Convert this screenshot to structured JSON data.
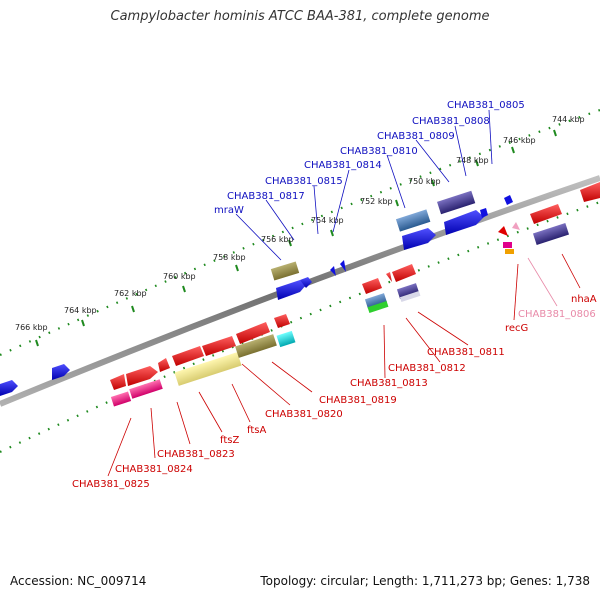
{
  "title": "Campylobacter hominis ATCC BAA-381, complete genome",
  "footer": {
    "accession": "Accession: NC_009714",
    "summary": "Topology: circular; Length: 1,711,273 bp; Genes: 1,738"
  },
  "axis": {
    "ticks": [
      "744 kbp",
      "746 kbp",
      "748 kbp",
      "750 kbp",
      "752 kbp",
      "754 kbp",
      "756 kbp",
      "758 kbp",
      "760 kbp",
      "762 kbp",
      "764 kbp",
      "766 kbp"
    ]
  },
  "labels_forward": [
    "CHAB381_0805",
    "CHAB381_0808",
    "CHAB381_0809",
    "CHAB381_0810",
    "CHAB381_0814",
    "CHAB381_0815",
    "CHAB381_0817",
    "mraW"
  ],
  "labels_reverse": [
    "nhaA",
    "CHAB381_0806",
    "recG",
    "CHAB381_0811",
    "CHAB381_0812",
    "CHAB381_0813",
    "CHAB381_0819",
    "CHAB381_0820",
    "ftsA",
    "ftsZ",
    "CHAB381_0823",
    "CHAB381_0824",
    "CHAB381_0825"
  ],
  "colors": {
    "forward_label": "#1010c0",
    "reverse_label": "#cc0000",
    "pseudo_label": "#e88aa8",
    "backbone": "#7a7a7a",
    "tick": "#1f8a1f"
  }
}
